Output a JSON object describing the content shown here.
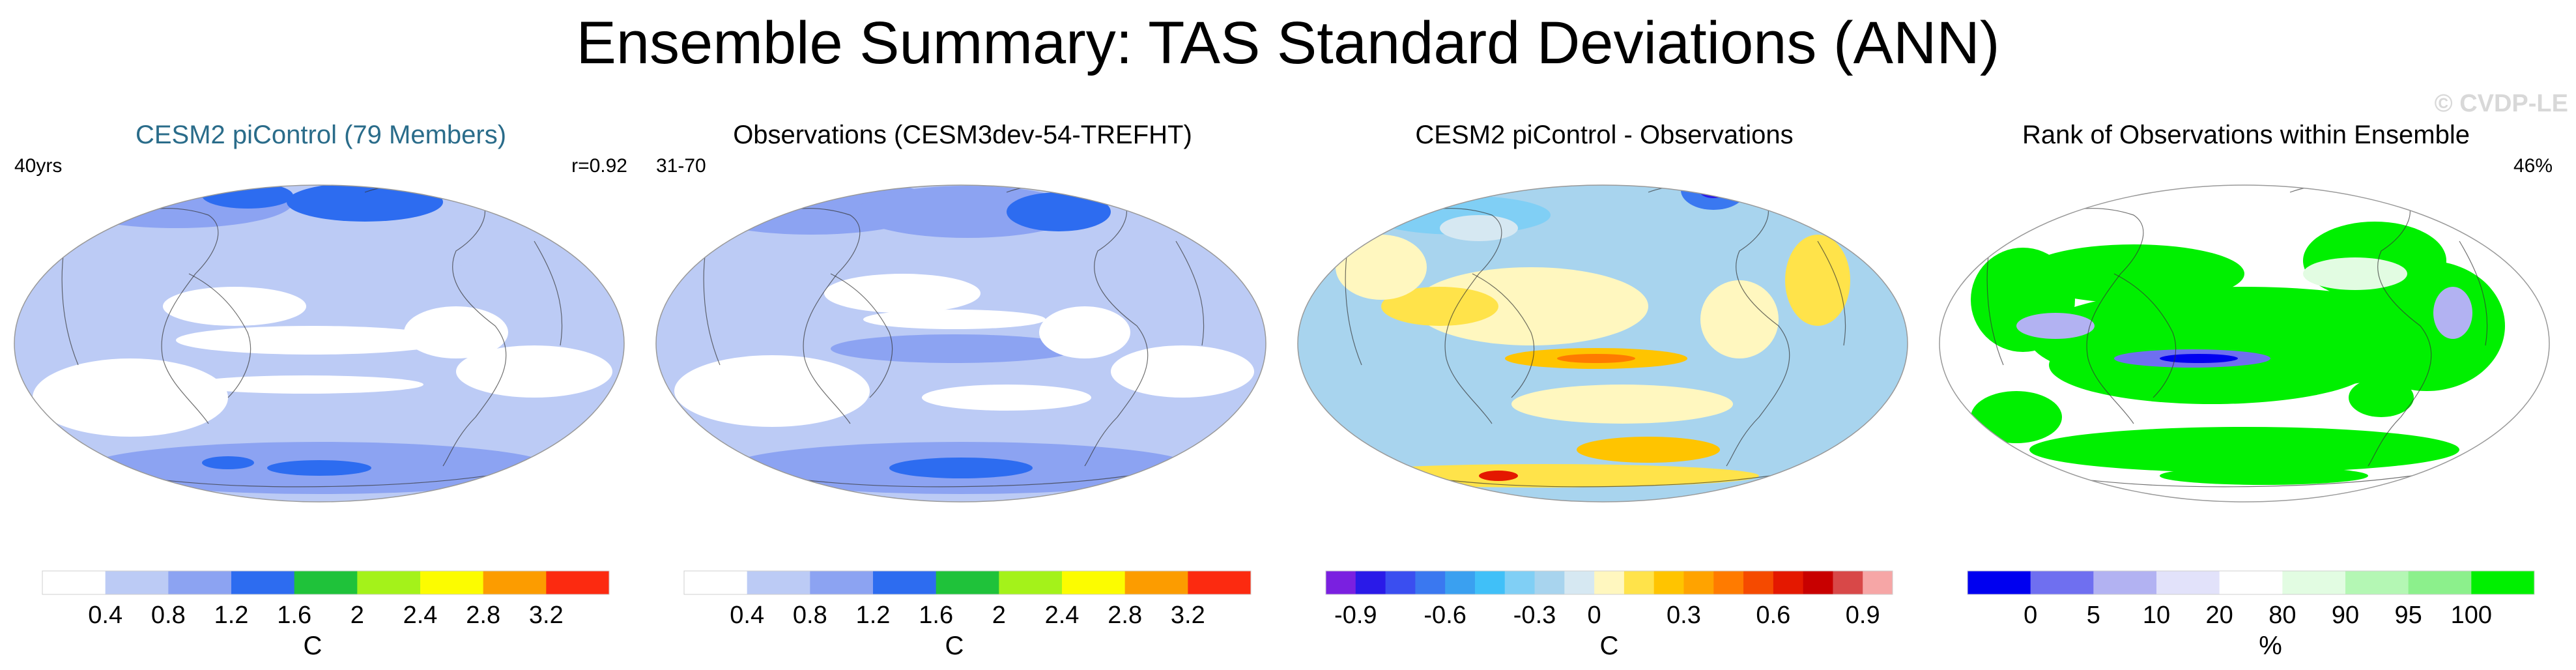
{
  "title": "Ensemble Summary: TAS Standard Deviations (ANN)",
  "watermark": "© CVDP-LE",
  "colors": {
    "seq": [
      "#ffffff",
      "#bccbf5",
      "#8ca3f2",
      "#2d6cf0",
      "#1fc23a",
      "#a4f21a",
      "#fcfc00",
      "#fc9c00",
      "#fc2a10"
    ],
    "diff": [
      "#7a20e0",
      "#2a1ae8",
      "#3a4ef0",
      "#3a78f0",
      "#3aa0f0",
      "#40c0f8",
      "#80cff5",
      "#a8d4ee",
      "#d6e8f2",
      "#fff7bf",
      "#ffe34a",
      "#ffc400",
      "#ffa300",
      "#ff7b00",
      "#f54a00",
      "#e41800",
      "#c80000",
      "#d84848",
      "#f6a6a6"
    ],
    "rank": [
      "#0000f0",
      "#6f6ff0",
      "#b2b2f2",
      "#e2e2fa",
      "#ffffff",
      "#e2fce2",
      "#b4f7b4",
      "#8cf08c",
      "#00f000"
    ],
    "ocean_fill": "#bccbf5",
    "coast": "#333333"
  },
  "panels": [
    {
      "title": "CESM2 piControl (79 Members)",
      "title_color": "#2a6c8a",
      "left_label": "40yrs",
      "right_label": "r=0.92",
      "colorbar": {
        "palette": "seq",
        "ticks": [
          {
            "label": "0.4",
            "boundary": 1
          },
          {
            "label": "0.8",
            "boundary": 2
          },
          {
            "label": "1.2",
            "boundary": 3
          },
          {
            "label": "1.6",
            "boundary": 4
          },
          {
            "label": "2",
            "boundary": 5
          },
          {
            "label": "2.4",
            "boundary": 6
          },
          {
            "label": "2.8",
            "boundary": 7
          },
          {
            "label": "3.2",
            "boundary": 8
          }
        ],
        "unit": "C"
      }
    },
    {
      "title": "Observations (CESM3dev-54-TREFHT)",
      "title_color": "#000000",
      "left_label": "31-70",
      "right_label": "",
      "colorbar": {
        "palette": "seq",
        "ticks": [
          {
            "label": "0.4",
            "boundary": 1
          },
          {
            "label": "0.8",
            "boundary": 2
          },
          {
            "label": "1.2",
            "boundary": 3
          },
          {
            "label": "1.6",
            "boundary": 4
          },
          {
            "label": "2",
            "boundary": 5
          },
          {
            "label": "2.4",
            "boundary": 6
          },
          {
            "label": "2.8",
            "boundary": 7
          },
          {
            "label": "3.2",
            "boundary": 8
          }
        ],
        "unit": "C"
      }
    },
    {
      "title": "CESM2 piControl - Observations",
      "title_color": "#000000",
      "left_label": "",
      "right_label": "",
      "colorbar": {
        "palette": "diff",
        "ticks": [
          {
            "label": "-0.9",
            "boundary": 1
          },
          {
            "label": "-0.6",
            "boundary": 4
          },
          {
            "label": "-0.3",
            "boundary": 7
          },
          {
            "label": "0",
            "boundary": 9
          },
          {
            "label": "0.3",
            "boundary": 12
          },
          {
            "label": "0.6",
            "boundary": 15
          },
          {
            "label": "0.9",
            "boundary": 18
          }
        ],
        "unit": "C"
      }
    },
    {
      "title": "Rank of Observations within Ensemble",
      "title_color": "#000000",
      "left_label": "",
      "right_label": "46%",
      "colorbar": {
        "palette": "rank",
        "ticks": [
          {
            "label": "0",
            "boundary": 1
          },
          {
            "label": "5",
            "boundary": 2
          },
          {
            "label": "10",
            "boundary": 3
          },
          {
            "label": "20",
            "boundary": 4
          },
          {
            "label": "80",
            "boundary": 5
          },
          {
            "label": "90",
            "boundary": 6
          },
          {
            "label": "95",
            "boundary": 7
          },
          {
            "label": "100",
            "boundary": 8
          }
        ],
        "unit": "%"
      }
    }
  ],
  "chart_data": {
    "type": "heatmap",
    "title": "Ensemble Summary: TAS Standard Deviations (ANN)",
    "projection": "Robinson (global, centered on Pacific)",
    "panels": [
      {
        "title": "CESM2 piControl (79 Members)",
        "variable": "TAS standard deviation",
        "units": "C",
        "levels": [
          0.4,
          0.8,
          1.2,
          1.6,
          2,
          2.4,
          2.8,
          3.2
        ],
        "pattern_correlation": "r=0.92",
        "period": "40yrs"
      },
      {
        "title": "Observations (CESM3dev-54-TREFHT)",
        "variable": "TAS standard deviation",
        "units": "C",
        "levels": [
          0.4,
          0.8,
          1.2,
          1.6,
          2,
          2.4,
          2.8,
          3.2
        ],
        "period": "31-70"
      },
      {
        "title": "CESM2 piControl - Observations",
        "variable": "difference",
        "units": "C",
        "levels": [
          -0.9,
          -0.6,
          -0.3,
          0,
          0.3,
          0.6,
          0.9
        ]
      },
      {
        "title": "Rank of Observations within Ensemble",
        "variable": "rank",
        "units": "%",
        "levels": [
          0,
          5,
          10,
          20,
          80,
          90,
          95,
          100
        ],
        "area_within_10_90": "46%"
      }
    ]
  }
}
